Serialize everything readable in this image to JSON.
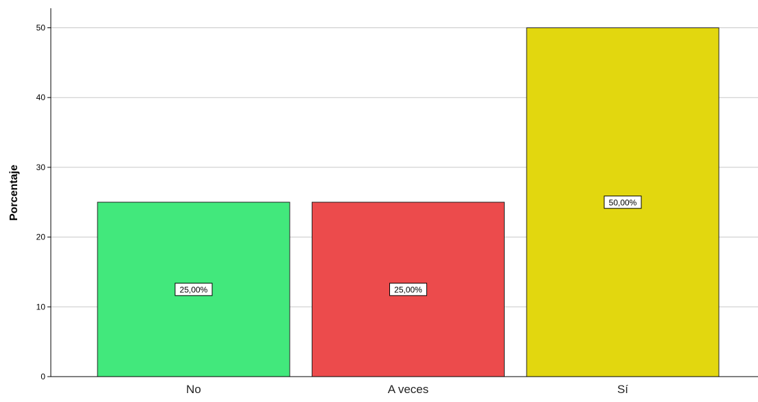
{
  "chart_data": {
    "type": "bar",
    "title": "",
    "xlabel": "",
    "ylabel": "Porcentaje",
    "categories": [
      "No",
      "A veces",
      "Sí"
    ],
    "values": [
      25,
      25,
      50
    ],
    "data_labels": [
      "25,00%",
      "25,00%",
      "50,00%"
    ],
    "colors": [
      "#42e87c",
      "#ec4b4c",
      "#e2d70f"
    ],
    "ylim": [
      0,
      52
    ],
    "yticks": [
      0,
      10,
      20,
      30,
      40,
      50
    ],
    "ytick_labels": [
      "0",
      "10",
      "20",
      "30",
      "40",
      "50"
    ],
    "grid": true,
    "legend": false
  }
}
